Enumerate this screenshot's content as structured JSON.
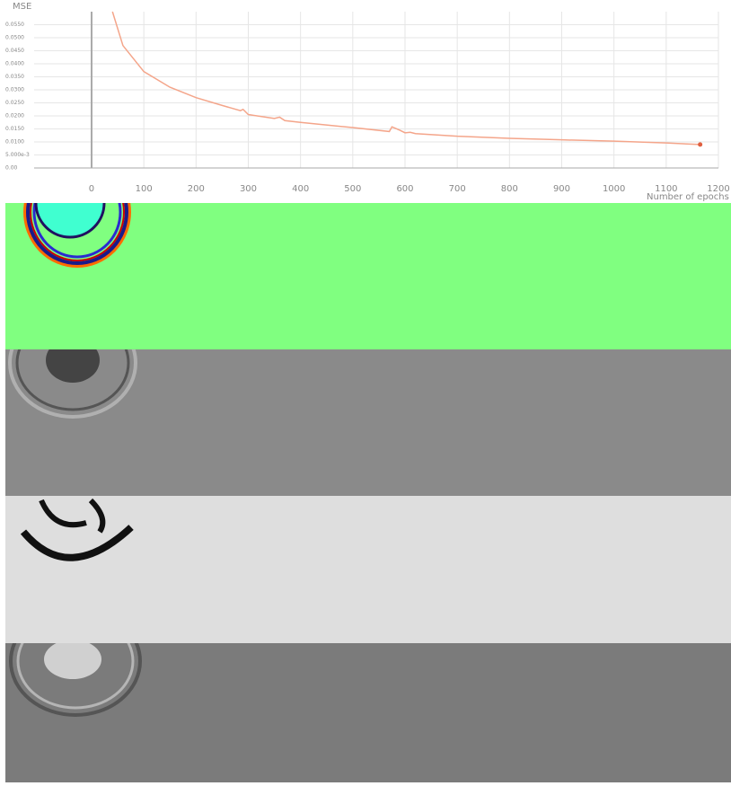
{
  "chart_data": {
    "type": "line",
    "y_title": "MSE",
    "x_title": "Number of epochs",
    "xlim": [
      -110,
      1200
    ],
    "xticks": [
      0,
      100,
      200,
      300,
      400,
      500,
      600,
      700,
      800,
      900,
      1000,
      1100,
      1200
    ],
    "ylim": [
      0,
      0.06
    ],
    "yticks": [
      {
        "value": 0,
        "label": "0.00"
      },
      {
        "value": 0.005,
        "label": "5.000e-3"
      },
      {
        "value": 0.01,
        "label": "0.0100"
      },
      {
        "value": 0.015,
        "label": "0.0150"
      },
      {
        "value": 0.02,
        "label": "0.0200"
      },
      {
        "value": 0.025,
        "label": "0.0250"
      },
      {
        "value": 0.03,
        "label": "0.0300"
      },
      {
        "value": 0.035,
        "label": "0.0350"
      },
      {
        "value": 0.04,
        "label": "0.0400"
      },
      {
        "value": 0.045,
        "label": "0.0450"
      },
      {
        "value": 0.05,
        "label": "0.0500"
      },
      {
        "value": 0.055,
        "label": "0.0550"
      }
    ],
    "grid": true,
    "series": [
      {
        "color": "#f4a58a",
        "x": [
          40,
          60,
          100,
          150,
          200,
          250,
          285,
          290,
          300,
          350,
          360,
          370,
          400,
          500,
          570,
          575,
          590,
          600,
          610,
          620,
          700,
          800,
          900,
          1000,
          1100,
          1165
        ],
        "values": [
          0.06,
          0.047,
          0.037,
          0.031,
          0.027,
          0.024,
          0.022,
          0.0225,
          0.0205,
          0.019,
          0.0195,
          0.0182,
          0.0175,
          0.0155,
          0.014,
          0.0158,
          0.0145,
          0.0135,
          0.0137,
          0.0132,
          0.0122,
          0.0114,
          0.0108,
          0.0103,
          0.0096,
          0.009
        ]
      }
    ]
  }
}
